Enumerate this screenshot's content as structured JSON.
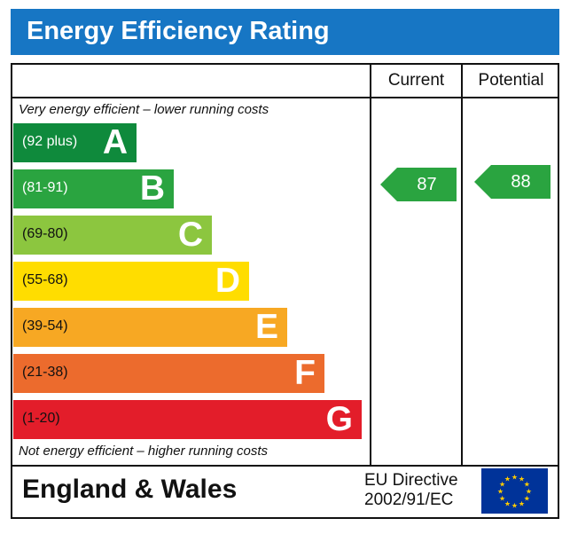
{
  "title": "Energy Efficiency Rating",
  "columns": {
    "current": "Current",
    "potential": "Potential"
  },
  "captions": {
    "top": "Very energy efficient – lower running costs",
    "bottom": "Not energy efficient – higher running costs"
  },
  "bands": [
    {
      "range": "(92 plus)",
      "letter": "A",
      "color": "#0f8a3c",
      "range_color": "#ffffff"
    },
    {
      "range": "(81-91)",
      "letter": "B",
      "color": "#2aa440",
      "range_color": "#ffffff"
    },
    {
      "range": "(69-80)",
      "letter": "C",
      "color": "#8cc63f",
      "range_color": "#111111"
    },
    {
      "range": "(55-68)",
      "letter": "D",
      "color": "#ffdd00",
      "range_color": "#111111"
    },
    {
      "range": "(39-54)",
      "letter": "E",
      "color": "#f7a823",
      "range_color": "#111111"
    },
    {
      "range": "(21-38)",
      "letter": "F",
      "color": "#ec6b2d",
      "range_color": "#111111"
    },
    {
      "range": "(1-20)",
      "letter": "G",
      "color": "#e31d2a",
      "range_color": "#111111"
    }
  ],
  "ratings": {
    "current": {
      "value": "87",
      "band": "B",
      "color": "#2aa440"
    },
    "potential": {
      "value": "88",
      "band": "B",
      "color": "#2aa440"
    }
  },
  "footer": {
    "country": "England & Wales",
    "directive_line1": "EU Directive",
    "directive_line2": "2002/91/EC",
    "flag": "eu-flag-icon"
  }
}
